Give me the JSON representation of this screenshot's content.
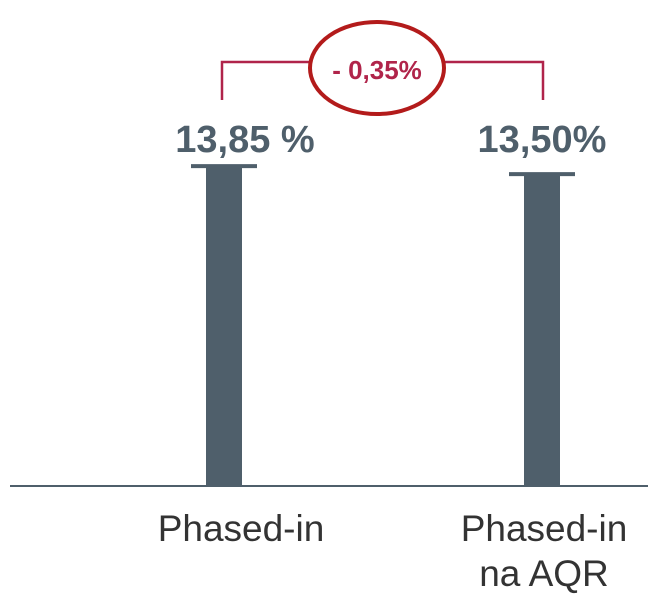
{
  "chart_data": {
    "type": "bar",
    "categories": [
      "Phased-in",
      "Phased-in na AQR"
    ],
    "category_lines": [
      [
        "Phased-in"
      ],
      [
        "Phased-in",
        "na AQR"
      ]
    ],
    "values": [
      13.85,
      13.5
    ],
    "value_labels": [
      "13,85 %",
      "13,50%"
    ],
    "difference_label": "- 0,35%",
    "title": "",
    "xlabel": "",
    "ylabel": "",
    "grid": false,
    "legend": false
  },
  "colors": {
    "bar": "#4f5f6b",
    "label": "#4f5f6b",
    "axis": "#4f5f6b",
    "bracket": "#b0244a",
    "ellipse": "#b31b1b",
    "difference_text": "#b0244a",
    "category_text": "#333333"
  }
}
